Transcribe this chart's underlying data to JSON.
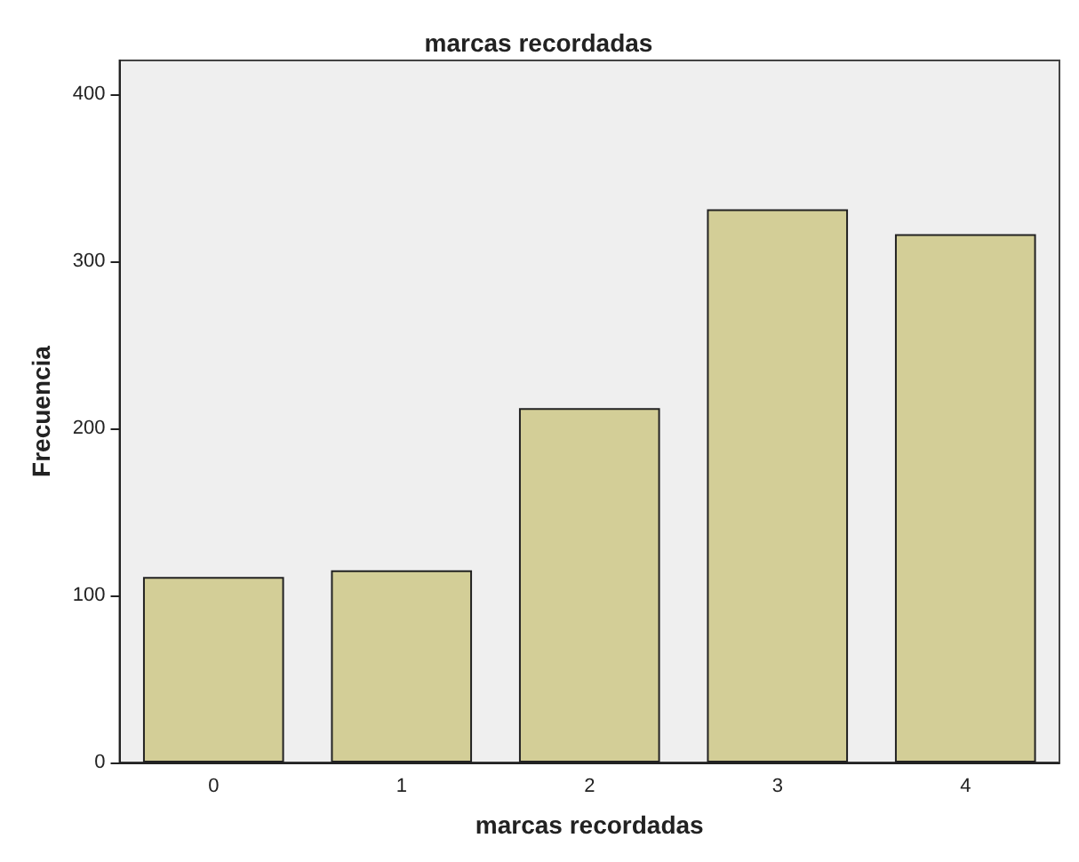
{
  "chart_data": {
    "type": "bar",
    "title": "marcas recordadas",
    "xlabel": "marcas recordadas",
    "ylabel": "Frecuencia",
    "categories": [
      "0",
      "1",
      "2",
      "3",
      "4"
    ],
    "values": [
      111,
      115,
      212,
      331,
      316
    ],
    "color": "#d3ce97",
    "ylim": [
      0,
      420
    ],
    "yticks": [
      0,
      100,
      200,
      300,
      400
    ],
    "grid": false
  }
}
